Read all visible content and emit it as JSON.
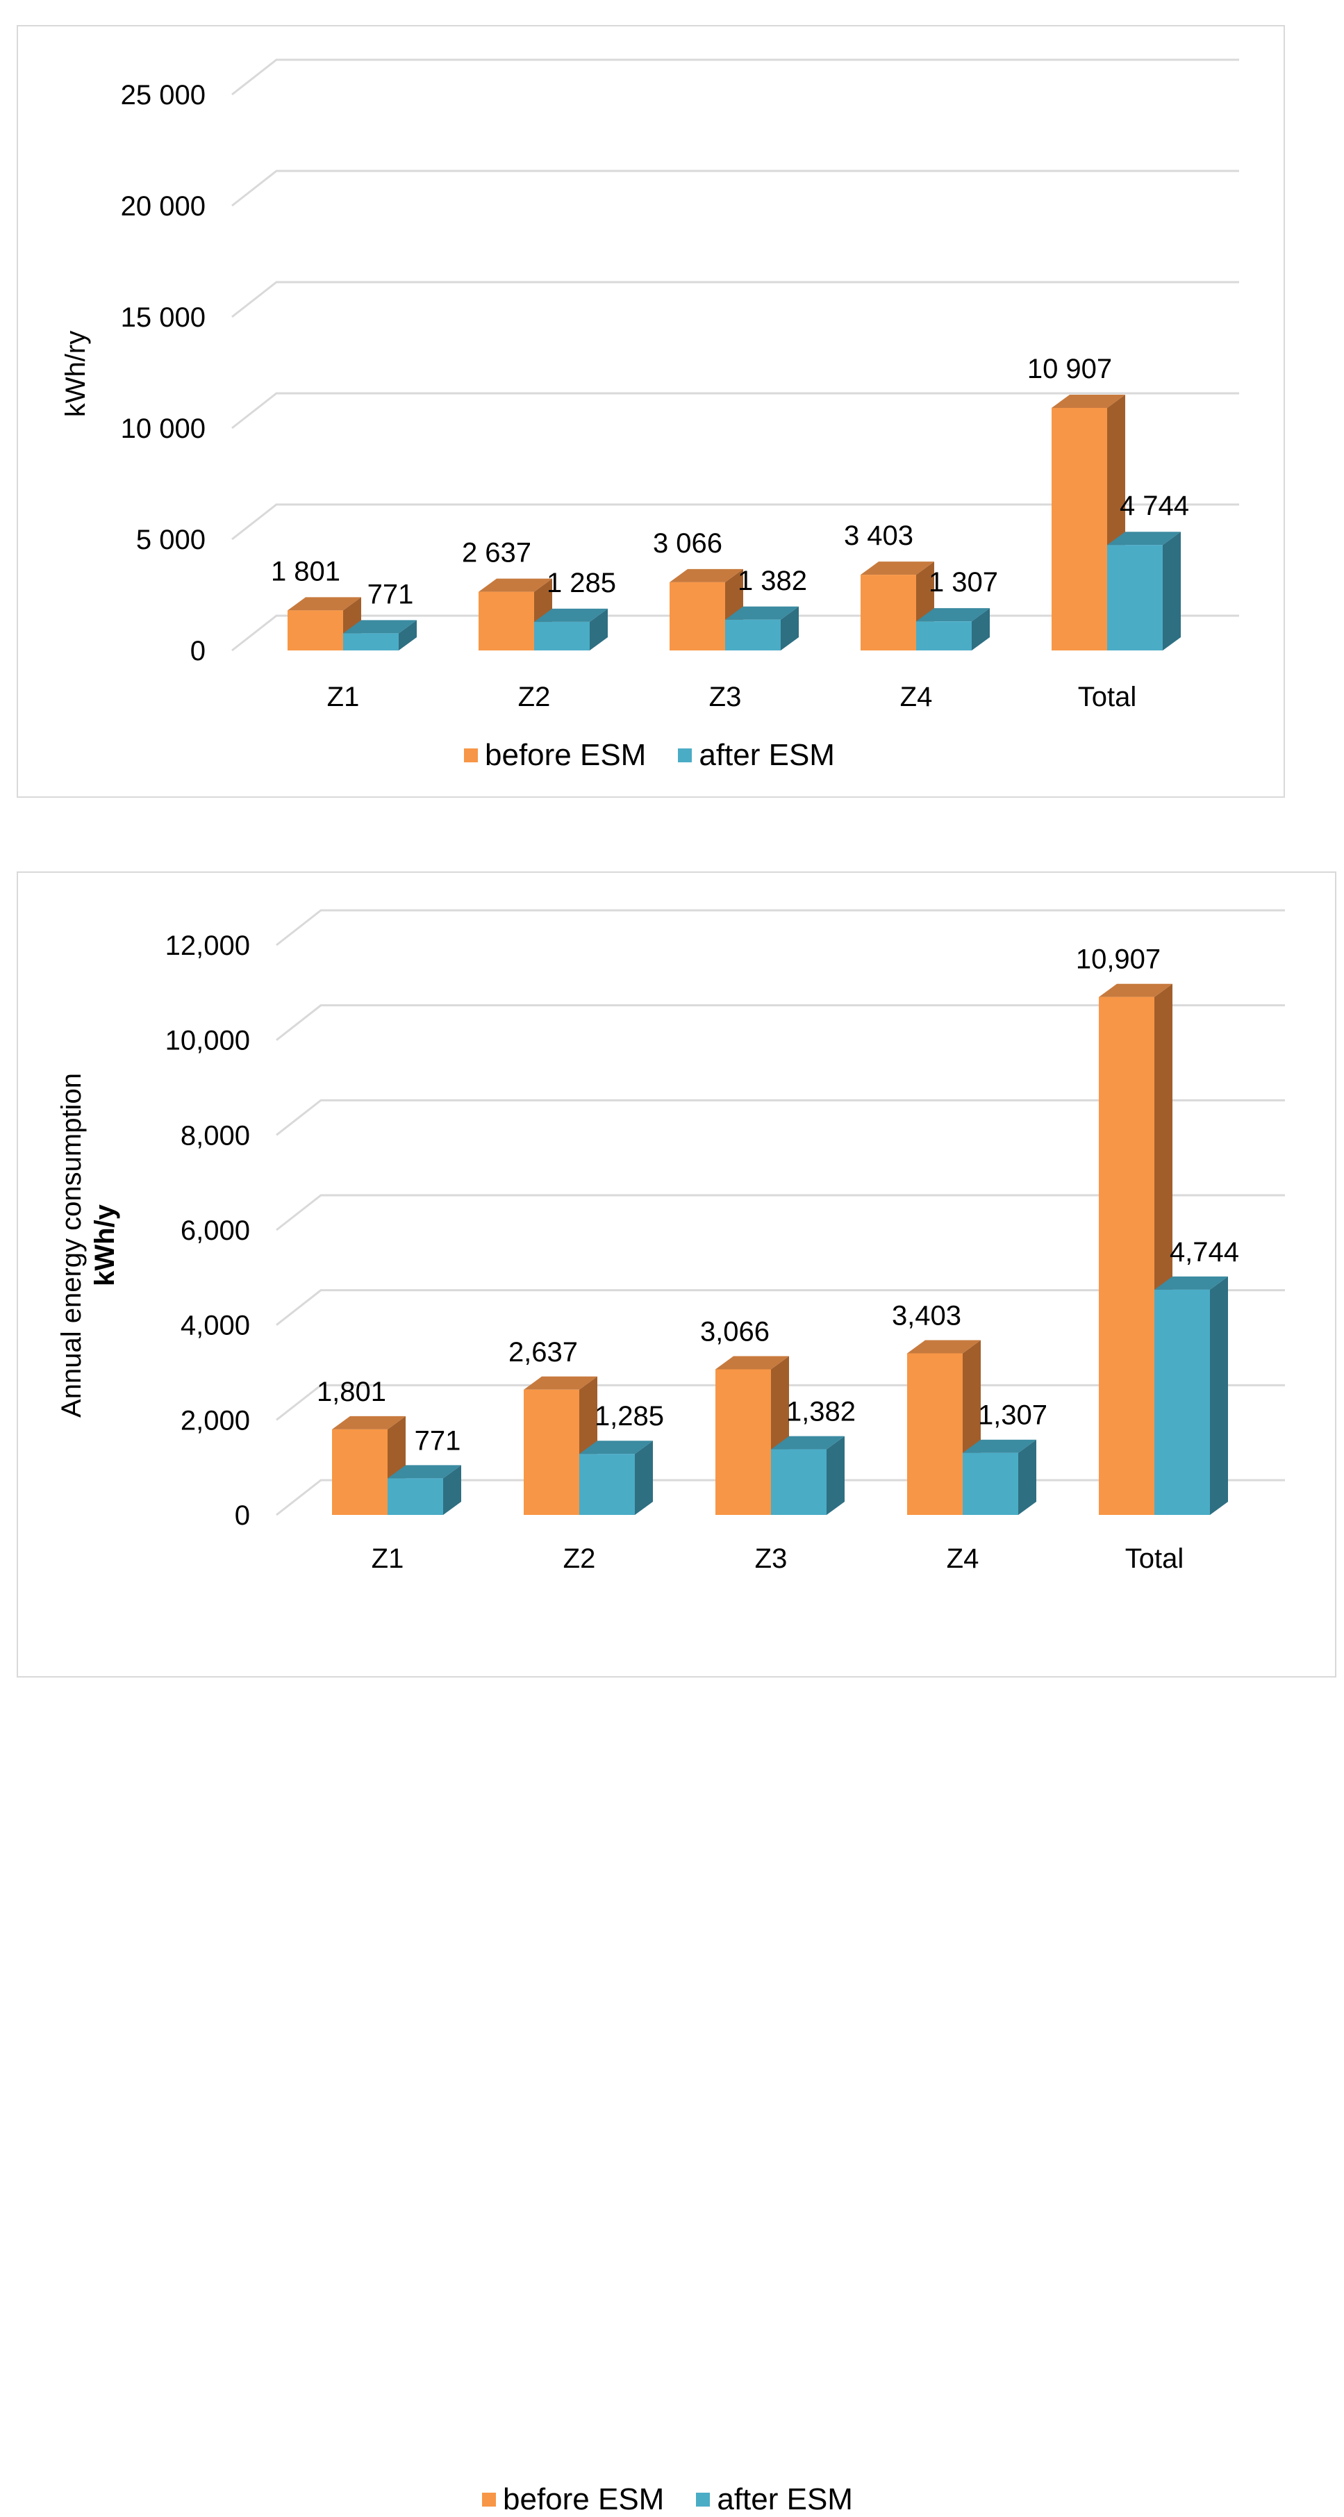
{
  "colors": {
    "before_front": "#f79646",
    "before_top": "#c77a3e",
    "before_side": "#a15e2b",
    "after_front": "#4bacc6",
    "after_top": "#3b8ba1",
    "after_side": "#2e6f82",
    "grid": "#d9d9d9"
  },
  "chart_data": [
    {
      "type": "bar",
      "style": "3d-clustered-column",
      "categories": [
        "Z1",
        "Z2",
        "Z3",
        "Z4",
        "Total"
      ],
      "series": [
        {
          "name": "before ESM",
          "values": [
            1801,
            2637,
            3066,
            3403,
            10907
          ]
        },
        {
          "name": "after ESM",
          "values": [
            771,
            1285,
            1382,
            1307,
            4744
          ]
        }
      ],
      "data_labels": {
        "before": [
          "1 801",
          "2 637",
          "3 066",
          "3 403",
          "10 907"
        ],
        "after": [
          "771",
          "1 285",
          "1 382",
          "1 307",
          "4 744"
        ]
      },
      "ylabel": "kWh/ry",
      "ylim": [
        0,
        25000
      ],
      "yticks": [
        "0",
        "5 000",
        "10 000",
        "15 000",
        "20 000",
        "25 000"
      ],
      "grid": true,
      "legend": "bottom"
    },
    {
      "type": "bar",
      "style": "3d-clustered-column",
      "categories": [
        "Z1",
        "Z2",
        "Z3",
        "Z4",
        "Total"
      ],
      "series": [
        {
          "name": "before ESM",
          "values": [
            1801,
            2637,
            3066,
            3403,
            10907
          ]
        },
        {
          "name": "after ESM",
          "values": [
            771,
            1285,
            1382,
            1307,
            4744
          ]
        }
      ],
      "data_labels": {
        "before": [
          "1,801",
          "2,637",
          "3,066",
          "3,403",
          "10,907"
        ],
        "after": [
          "771",
          "1,285",
          "1,382",
          "1,307",
          "4,744"
        ]
      },
      "ylabel": "Annual energy consumption",
      "ylabel_unit": "kWh/y",
      "ylim": [
        0,
        12000
      ],
      "yticks": [
        "0",
        "2,000",
        "4,000",
        "6,000",
        "8,000",
        "10,000",
        "12,000"
      ],
      "grid": true,
      "legend": "bottom"
    }
  ]
}
